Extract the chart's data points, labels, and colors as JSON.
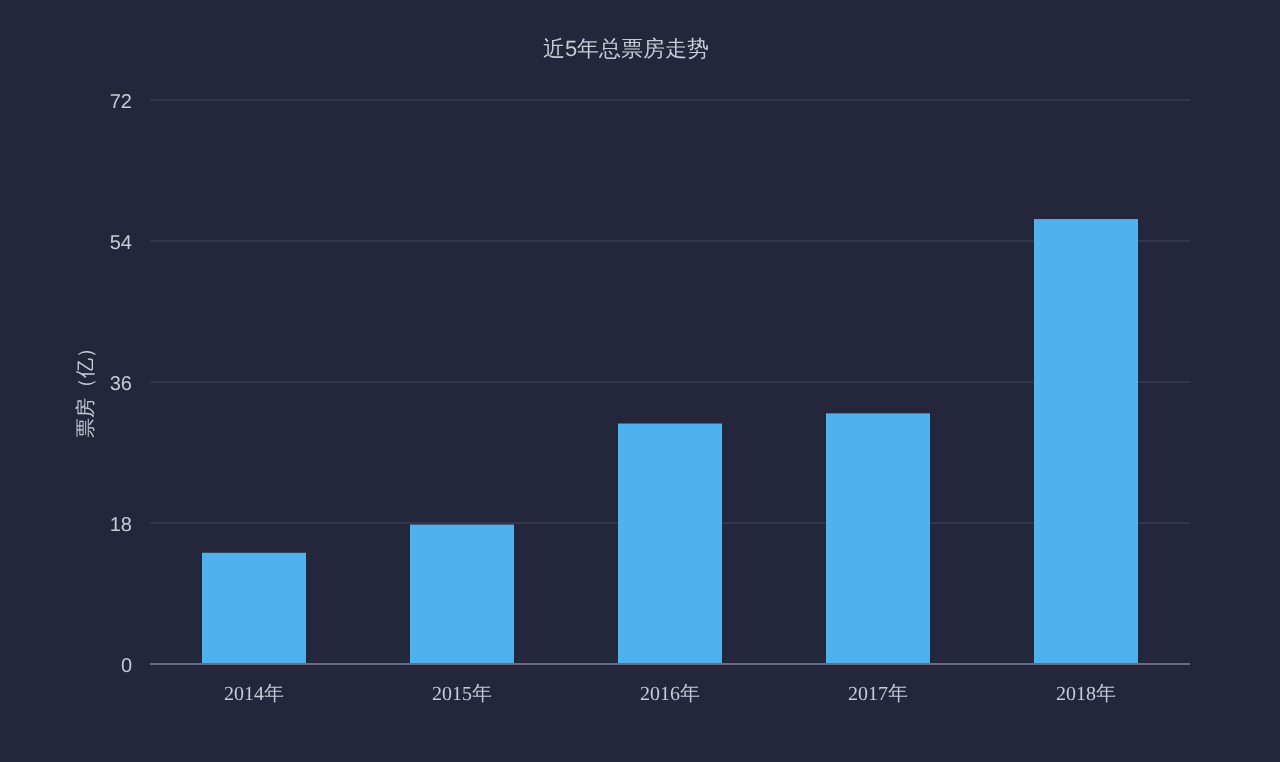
{
  "chart_data": {
    "type": "bar",
    "title": "近5年总票房走势",
    "ylabel": "票房（亿）",
    "categories": [
      "2014年",
      "2015年",
      "2016年",
      "2017年",
      "2018年"
    ],
    "values": [
      14.2,
      17.8,
      30.7,
      32.0,
      56.8
    ],
    "color": "#4fb1ee",
    "ylim": [
      0,
      72
    ],
    "yticks": [
      0,
      18,
      36,
      54,
      72
    ],
    "grid": "y"
  }
}
